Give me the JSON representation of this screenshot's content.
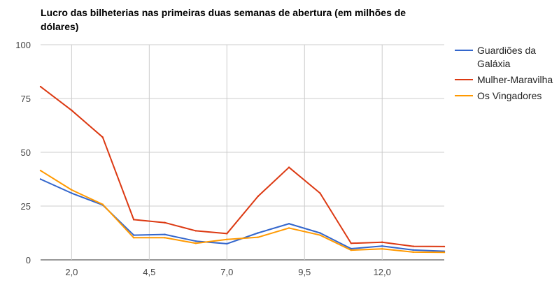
{
  "chart_data": {
    "type": "line",
    "title": "Lucro das bilheterias nas primeiras duas semanas de abertura (em milhões de dólares)",
    "xlabel": "",
    "ylabel": "",
    "xlim": [
      1,
      14
    ],
    "ylim": [
      0,
      100
    ],
    "x_ticks": [
      2,
      4.5,
      7,
      9.5,
      12
    ],
    "x_tick_labels": [
      "2,0",
      "4,5",
      "7,0",
      "9,5",
      "12,0"
    ],
    "y_ticks": [
      0,
      25,
      50,
      75,
      100
    ],
    "y_tick_labels": [
      "0",
      "25",
      "50",
      "75",
      "100"
    ],
    "grid": true,
    "legend_position": "right",
    "x": [
      1,
      2,
      3,
      4,
      5,
      6,
      7,
      8,
      9,
      10,
      11,
      12,
      13,
      14
    ],
    "series": [
      {
        "name": "Guardiões da Galáxia",
        "color": "#3366cc",
        "values": [
          37.5,
          31,
          25.5,
          11.5,
          11.8,
          8.7,
          7.5,
          12.5,
          16.8,
          12.5,
          5.2,
          6.4,
          4.6,
          4
        ]
      },
      {
        "name": "Mulher-Maravilha",
        "color": "#dc3912",
        "values": [
          80.5,
          69.5,
          57,
          18.7,
          17.3,
          13.5,
          12.2,
          29.5,
          43,
          31,
          7.7,
          8.2,
          6.3,
          6.2
        ]
      },
      {
        "name": "Os Vingadores",
        "color": "#ff9900",
        "values": [
          41.5,
          32.5,
          25.8,
          10.3,
          10.3,
          7.7,
          9.5,
          10.5,
          14.8,
          11.5,
          4.5,
          5.1,
          3.6,
          3.5
        ]
      }
    ]
  }
}
